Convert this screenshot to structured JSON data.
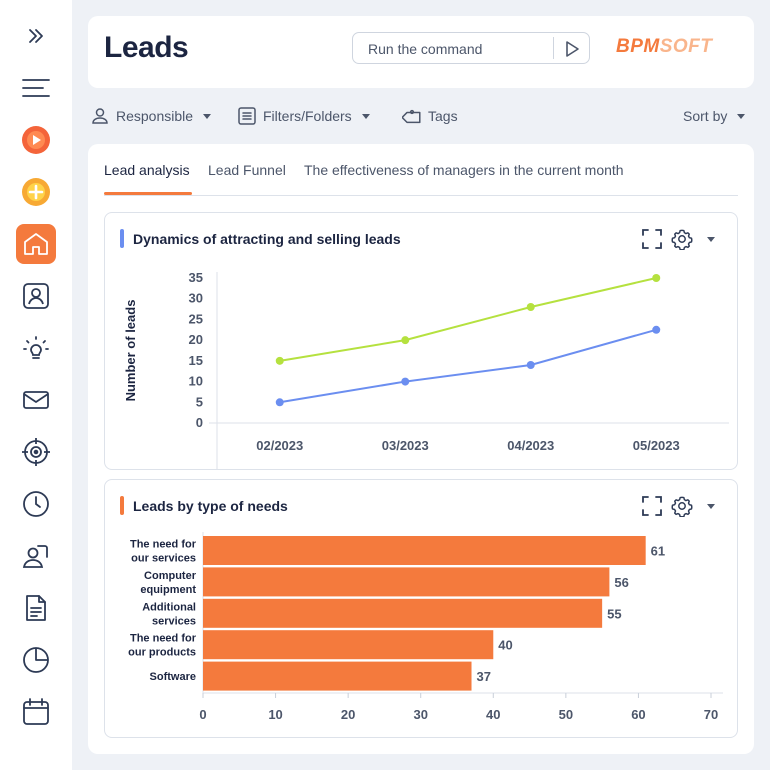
{
  "header": {
    "title": "Leads",
    "command_placeholder": "Run the command",
    "logo_part1": "BPM",
    "logo_part2": "SOFT"
  },
  "toolbar": {
    "responsible": "Responsible",
    "filters": "Filters/Folders",
    "tags": "Tags",
    "sort": "Sort by"
  },
  "tabs": [
    {
      "label": "Lead analysis",
      "active": true
    },
    {
      "label": "Lead Funnel",
      "active": false
    },
    {
      "label": "The effectiveness of managers in the current month",
      "active": false
    }
  ],
  "colors": {
    "accent": "#f47a3d",
    "series_green": "#b5e13f",
    "series_blue": "#6b8ef0"
  },
  "sidebar_icons": [
    "expand-icon",
    "menu-icon",
    "play-icon",
    "add-icon",
    "home-icon",
    "contact-icon",
    "idea-icon",
    "mail-icon",
    "target-icon",
    "clock-icon",
    "users-icon",
    "document-icon",
    "pie-chart-icon",
    "calendar-icon"
  ],
  "chart_data": [
    {
      "type": "line",
      "title": "Dynamics of attracting and selling leads",
      "ylabel": "Number of leads",
      "xlabel": "",
      "categories": [
        "02/2023",
        "03/2023",
        "04/2023",
        "05/2023"
      ],
      "ylim": [
        0,
        35
      ],
      "yticks": [
        0,
        5,
        10,
        15,
        20,
        25,
        30,
        35
      ],
      "series": [
        {
          "values": [
            15,
            20,
            28,
            35
          ],
          "color": "#b5e13f"
        },
        {
          "values": [
            5,
            10,
            14,
            22.5
          ],
          "color": "#6b8ef0"
        }
      ]
    },
    {
      "type": "bar",
      "orientation": "horizontal",
      "title": "Leads by type of needs",
      "categories": [
        [
          "The need for",
          "our services"
        ],
        [
          "Computer",
          "equipment"
        ],
        [
          "Additional",
          "services"
        ],
        [
          "The need for",
          "our products"
        ],
        [
          "Software"
        ]
      ],
      "values": [
        61,
        56,
        55,
        40,
        37
      ],
      "xlim": [
        0,
        70
      ],
      "xticks": [
        0,
        10,
        20,
        30,
        40,
        50,
        60,
        70
      ],
      "color": "#f47a3d"
    }
  ]
}
